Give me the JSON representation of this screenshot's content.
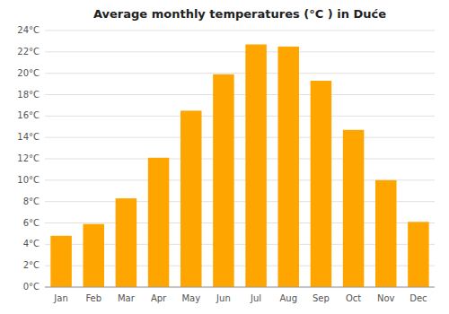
{
  "chart_data": {
    "type": "bar",
    "title": "Average monthly temperatures (°C ) in Duće",
    "categories": [
      "Jan",
      "Feb",
      "Mar",
      "Apr",
      "May",
      "Jun",
      "Jul",
      "Aug",
      "Sep",
      "Oct",
      "Nov",
      "Dec"
    ],
    "values": [
      4.8,
      5.9,
      8.3,
      12.1,
      16.5,
      19.9,
      22.7,
      22.5,
      19.3,
      14.7,
      10.0,
      6.1
    ],
    "color": "#FFA500",
    "ylim": [
      0,
      24
    ],
    "yticks": [
      {
        "value": 0,
        "label": "0°C"
      },
      {
        "value": 2,
        "label": "2°C"
      },
      {
        "value": 4,
        "label": "4°C"
      },
      {
        "value": 6,
        "label": "6°C"
      },
      {
        "value": 8,
        "label": "8°C"
      },
      {
        "value": 10,
        "label": "10°C"
      },
      {
        "value": 12,
        "label": "12°C"
      },
      {
        "value": 14,
        "label": "14°C"
      },
      {
        "value": 16,
        "label": "16°C"
      },
      {
        "value": 18,
        "label": "18°C"
      },
      {
        "value": 20,
        "label": "20°C"
      },
      {
        "value": 22,
        "label": "22°C"
      },
      {
        "value": 24,
        "label": "24°C"
      }
    ],
    "grid": true
  }
}
